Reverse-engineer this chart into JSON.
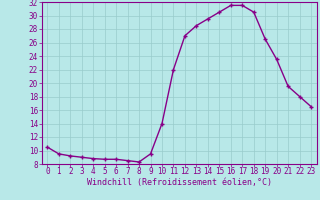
{
  "x": [
    0,
    1,
    2,
    3,
    4,
    5,
    6,
    7,
    8,
    9,
    10,
    11,
    12,
    13,
    14,
    15,
    16,
    17,
    18,
    19,
    20,
    21,
    22,
    23
  ],
  "y": [
    10.5,
    9.5,
    9.2,
    9.0,
    8.8,
    8.7,
    8.7,
    8.5,
    8.3,
    9.5,
    14.0,
    22.0,
    27.0,
    28.5,
    29.5,
    30.5,
    31.5,
    31.5,
    30.5,
    26.5,
    23.5,
    19.5,
    18.0,
    16.5
  ],
  "line_color": "#880088",
  "marker": "+",
  "marker_color": "#880088",
  "bg_color": "#b8e8e8",
  "grid_color": "#99cccc",
  "xlabel": "Windchill (Refroidissement éolien,°C)",
  "xlabel_color": "#880088",
  "tick_color": "#880088",
  "spine_color": "#880088",
  "ylim": [
    8,
    32
  ],
  "xlim": [
    -0.5,
    23.5
  ],
  "yticks": [
    8,
    10,
    12,
    14,
    16,
    18,
    20,
    22,
    24,
    26,
    28,
    30,
    32
  ],
  "xticks": [
    0,
    1,
    2,
    3,
    4,
    5,
    6,
    7,
    8,
    9,
    10,
    11,
    12,
    13,
    14,
    15,
    16,
    17,
    18,
    19,
    20,
    21,
    22,
    23
  ],
  "xtick_labels": [
    "0",
    "1",
    "2",
    "3",
    "4",
    "5",
    "6",
    "7",
    "8",
    "9",
    "10",
    "11",
    "12",
    "13",
    "14",
    "15",
    "16",
    "17",
    "18",
    "19",
    "20",
    "21",
    "22",
    "23"
  ],
  "ytick_labels": [
    "8",
    "10",
    "12",
    "14",
    "16",
    "18",
    "20",
    "22",
    "24",
    "26",
    "28",
    "30",
    "32"
  ],
  "linewidth": 1.0,
  "markersize": 3.5,
  "xlabel_fontsize": 6,
  "tick_fontsize": 5.5
}
